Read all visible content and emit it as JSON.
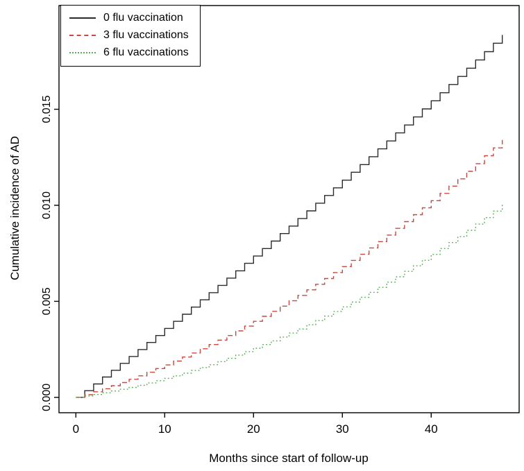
{
  "chart_data": {
    "type": "line",
    "subtype": "step",
    "title": "",
    "xlabel": "Months since start of follow-up",
    "ylabel": "Cumulative incidence of AD",
    "xlim": [
      0,
      48
    ],
    "ylim": [
      0,
      0.0196
    ],
    "x_ticks": [
      0,
      10,
      20,
      30,
      40
    ],
    "y_ticks": [
      0,
      0.005,
      0.01,
      0.015
    ],
    "y_tick_labels": [
      "0.000",
      "0.005",
      "0.010",
      "0.015"
    ],
    "grid": false,
    "legend_position": "top-left",
    "axis_color": "#000000",
    "x": [
      0,
      1,
      2,
      3,
      4,
      5,
      6,
      7,
      8,
      9,
      10,
      11,
      12,
      13,
      14,
      15,
      16,
      17,
      18,
      19,
      20,
      21,
      22,
      23,
      24,
      25,
      26,
      27,
      28,
      29,
      30,
      31,
      32,
      33,
      34,
      35,
      36,
      37,
      38,
      39,
      40,
      41,
      42,
      43,
      44,
      45,
      46,
      47,
      48
    ],
    "series": [
      {
        "name": "0 flu vaccination",
        "color": "#2a2a2a",
        "dash": "solid",
        "values": [
          0,
          0.00035,
          0.0007,
          0.00106,
          0.00141,
          0.00177,
          0.00213,
          0.00249,
          0.00286,
          0.00322,
          0.00359,
          0.00396,
          0.00433,
          0.0047,
          0.00508,
          0.00545,
          0.00583,
          0.00621,
          0.00659,
          0.00698,
          0.00736,
          0.00775,
          0.00814,
          0.00853,
          0.00892,
          0.00931,
          0.00971,
          0.01011,
          0.01051,
          0.01091,
          0.01131,
          0.01172,
          0.01212,
          0.01253,
          0.01294,
          0.01335,
          0.01377,
          0.01418,
          0.0146,
          0.01502,
          0.01544,
          0.01586,
          0.01629,
          0.01671,
          0.01714,
          0.01757,
          0.018,
          0.01844,
          0.01887
        ]
      },
      {
        "name": "3 flu vaccinations",
        "color": "#c8473f",
        "dash": "dashed",
        "values": [
          0,
          0.00014,
          0.00029,
          0.00045,
          0.00061,
          0.00077,
          0.00094,
          0.00112,
          0.00131,
          0.0015,
          0.00169,
          0.00189,
          0.0021,
          0.00231,
          0.00253,
          0.00275,
          0.00298,
          0.00322,
          0.00346,
          0.00371,
          0.00396,
          0.00422,
          0.00448,
          0.00475,
          0.00503,
          0.00531,
          0.0056,
          0.00589,
          0.00619,
          0.0065,
          0.00681,
          0.00713,
          0.00745,
          0.00778,
          0.00811,
          0.00845,
          0.0088,
          0.00915,
          0.00951,
          0.00987,
          0.01024,
          0.01062,
          0.011,
          0.01138,
          0.01177,
          0.01217,
          0.01258,
          0.01299,
          0.0134
        ]
      },
      {
        "name": "6 flu vaccinations",
        "color": "#4fae4f",
        "dash": "dotted",
        "values": [
          0,
          7e-05,
          0.00015,
          0.00024,
          0.00033,
          0.00042,
          0.00052,
          0.00063,
          0.00075,
          0.00087,
          0.00099,
          0.00112,
          0.00126,
          0.0014,
          0.00155,
          0.0017,
          0.00186,
          0.00203,
          0.0022,
          0.00238,
          0.00256,
          0.00275,
          0.00294,
          0.00314,
          0.00335,
          0.00356,
          0.00378,
          0.004,
          0.00423,
          0.00447,
          0.00471,
          0.00496,
          0.00521,
          0.00547,
          0.00573,
          0.006,
          0.00628,
          0.00656,
          0.00685,
          0.00714,
          0.00744,
          0.00775,
          0.00806,
          0.00837,
          0.0087,
          0.00902,
          0.00936,
          0.0097,
          0.01004
        ]
      }
    ]
  }
}
